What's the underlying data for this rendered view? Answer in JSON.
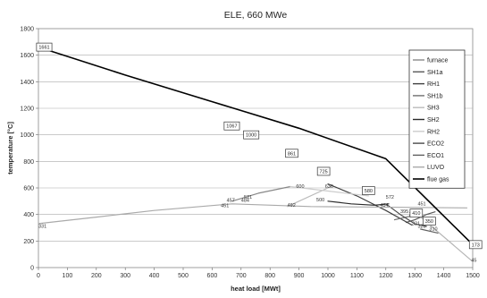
{
  "chart_data": {
    "type": "line",
    "title": "ELE, 660 MWe",
    "xlabel": "heat load [MWt]",
    "ylabel": "temperature [°C]",
    "xlim": [
      0,
      1500
    ],
    "ylim": [
      0,
      1800
    ],
    "xticks": [
      0,
      100,
      200,
      300,
      400,
      500,
      600,
      700,
      800,
      900,
      1000,
      1100,
      1200,
      1300,
      1400,
      1500
    ],
    "yticks": [
      0,
      200,
      400,
      600,
      800,
      1000,
      1200,
      1400,
      1600,
      1800
    ],
    "grid": "horizontal",
    "legend_position": "right",
    "series": [
      {
        "name": "furnace",
        "color": "#888888",
        "points": [
          [
            669,
            500
          ],
          [
            760,
            560
          ],
          [
            870,
            610
          ]
        ]
      },
      {
        "name": "SH1a",
        "color": "#5a5a5a",
        "points": [
          [
            1270,
            340
          ],
          [
            1300,
            360
          ],
          [
            1340,
            400
          ],
          [
            1370,
            420
          ]
        ]
      },
      {
        "name": "RH1",
        "color": "#3f3f3f",
        "points": [
          [
            1000,
            630
          ],
          [
            1100,
            540
          ],
          [
            1200,
            430
          ],
          [
            1290,
            320
          ]
        ]
      },
      {
        "name": "SH1b",
        "color": "#707070",
        "points": [
          [
            1230,
            360
          ],
          [
            1290,
            390
          ]
        ]
      },
      {
        "name": "SH3",
        "color": "#bbbbbb",
        "points": [
          [
            860,
            460
          ],
          [
            1010,
            610
          ]
        ]
      },
      {
        "name": "SH2",
        "color": "#2a2a2a",
        "points": [
          [
            1000,
            500
          ],
          [
            1080,
            480
          ],
          [
            1160,
            470
          ],
          [
            1210,
            480
          ]
        ]
      },
      {
        "name": "RH2",
        "color": "#cccccc",
        "points": [
          [
            870,
            610
          ],
          [
            1140,
            540
          ]
        ]
      },
      {
        "name": "ECO2",
        "color": "#4a4a4a",
        "points": [
          [
            1200,
            480
          ],
          [
            1250,
            400
          ],
          [
            1300,
            330
          ],
          [
            1340,
            310
          ]
        ]
      },
      {
        "name": "ECO1",
        "color": "#606060",
        "points": [
          [
            1320,
            290
          ],
          [
            1380,
            260
          ]
        ]
      },
      {
        "name": "LUVO",
        "color": "#aaaaaa",
        "points": [
          [
            0,
            331
          ],
          [
            200,
            380
          ],
          [
            400,
            430
          ],
          [
            669,
            480
          ],
          [
            940,
            460
          ],
          [
            1480,
            450
          ]
        ]
      },
      {
        "name": "flue gas",
        "color": "#000000",
        "points": [
          [
            0,
            1661
          ],
          [
            300,
            1450
          ],
          [
            600,
            1250
          ],
          [
            900,
            1050
          ],
          [
            1200,
            820
          ],
          [
            1500,
            173
          ]
        ]
      },
      {
        "name": "",
        "color": "#b5b5b5",
        "points": [
          [
            1310,
            400
          ],
          [
            1500,
            45
          ]
        ]
      }
    ],
    "point_labels": [
      {
        "x": 20,
        "y": 1661,
        "text": "1661"
      },
      {
        "x": 668,
        "y": 1067,
        "text": "1067"
      },
      {
        "x": 735,
        "y": 1000,
        "text": "1000"
      },
      {
        "x": 875,
        "y": 861,
        "text": "861"
      },
      {
        "x": 985,
        "y": 725,
        "text": "725"
      },
      {
        "x": 1140,
        "y": 580,
        "text": "580"
      },
      {
        "x": 1305,
        "y": 410,
        "text": "410"
      },
      {
        "x": 1350,
        "y": 350,
        "text": "350"
      },
      {
        "x": 1510,
        "y": 173,
        "text": "173"
      }
    ],
    "annotations": [
      {
        "x": 0,
        "y": 300,
        "text": "331"
      },
      {
        "x": 630,
        "y": 455,
        "text": "451"
      },
      {
        "x": 650,
        "y": 495,
        "text": "457"
      },
      {
        "x": 700,
        "y": 494,
        "text": "484"
      },
      {
        "x": 710,
        "y": 520,
        "text": "521"
      },
      {
        "x": 860,
        "y": 460,
        "text": "492"
      },
      {
        "x": 890,
        "y": 600,
        "text": "600"
      },
      {
        "x": 990,
        "y": 600,
        "text": "630"
      },
      {
        "x": 960,
        "y": 500,
        "text": "500"
      },
      {
        "x": 1200,
        "y": 520,
        "text": "572"
      },
      {
        "x": 1180,
        "y": 460,
        "text": "484"
      },
      {
        "x": 1310,
        "y": 470,
        "text": "451"
      },
      {
        "x": 1250,
        "y": 410,
        "text": "395"
      },
      {
        "x": 1280,
        "y": 390,
        "text": "370"
      },
      {
        "x": 1290,
        "y": 320,
        "text": "321"
      },
      {
        "x": 1310,
        "y": 300,
        "text": "323"
      },
      {
        "x": 1340,
        "y": 320,
        "text": "300"
      },
      {
        "x": 1350,
        "y": 280,
        "text": "310"
      },
      {
        "x": 1495,
        "y": 45,
        "text": "45"
      }
    ]
  }
}
